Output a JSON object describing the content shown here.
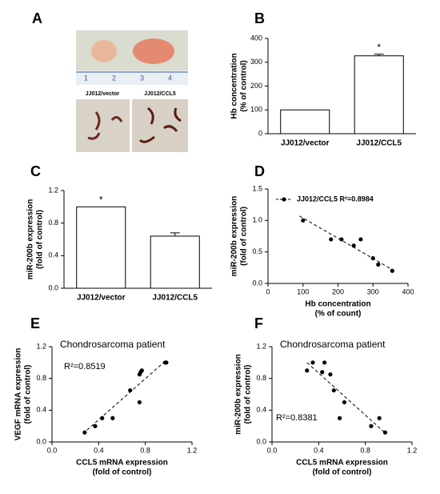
{
  "panel_a": {
    "letter": "A",
    "ruler": [
      "1",
      "2",
      "3",
      "4"
    ],
    "labels": [
      "JJ012/vector",
      "JJ012/CCL5"
    ]
  },
  "chart_data": [
    {
      "type": "bar",
      "letter": "B",
      "categories": [
        "JJ012/vector",
        "JJ012/CCL5"
      ],
      "values": [
        100,
        327
      ],
      "errors": [
        0,
        7
      ],
      "annotation": "*",
      "ylabel": [
        "Hb concentration",
        "(% of control)"
      ],
      "ylim": [
        0,
        400
      ],
      "yticks": [
        0,
        100,
        200,
        300,
        400
      ],
      "color": "#ffffff"
    },
    {
      "type": "bar",
      "letter": "C",
      "categories": [
        "JJ012/vector",
        "JJ012/CCL5"
      ],
      "values": [
        1.0,
        0.64
      ],
      "errors": [
        0,
        0.04
      ],
      "annotation": "*",
      "ylabel": [
        "miR-200b expression",
        "(fold of control)"
      ],
      "ylim": [
        0,
        1.2
      ],
      "yticks": [
        {
          "value": 0,
          "label": "0.0"
        },
        0.4,
        0.8,
        1.2
      ],
      "color": "#ffffff"
    },
    {
      "type": "scatter",
      "letter": "D",
      "legend": "JJ012/CCL5 R²=0.8984",
      "x": [
        100,
        180,
        210,
        245,
        265,
        300,
        315,
        355
      ],
      "y": [
        1.0,
        0.7,
        0.7,
        0.6,
        0.7,
        0.4,
        0.3,
        0.2
      ],
      "trendline": {
        "x": [
          90,
          355
        ],
        "y": [
          1.07,
          0.22
        ]
      },
      "xlabel": [
        "Hb concentration",
        "(% of count)"
      ],
      "ylabel": [
        "miR-200b expression",
        "(fold of control)"
      ],
      "xlim": [
        0,
        400
      ],
      "xticks": [
        0,
        100,
        200,
        300,
        400
      ],
      "ylim": [
        0,
        1.5
      ],
      "yticks": [
        {
          "value": 0,
          "label": "0.0"
        },
        0.5,
        {
          "value": 1,
          "label": "1.0"
        },
        1.5
      ],
      "color": "#000000"
    },
    {
      "type": "scatter",
      "letter": "E",
      "title": "Chondrosarcoma patient",
      "annotation": "R²=0.8519",
      "x": [
        0.28,
        0.37,
        0.43,
        0.52,
        0.67,
        0.75,
        0.75,
        0.76,
        0.77,
        0.97,
        0.98
      ],
      "y": [
        0.12,
        0.2,
        0.3,
        0.3,
        0.65,
        0.5,
        0.85,
        0.88,
        0.9,
        1.0,
        1.0
      ],
      "trendline": {
        "x": [
          0.3,
          0.98
        ],
        "y": [
          0.15,
          1.03
        ]
      },
      "xlabel": [
        "CCL5 mRNA expression",
        "(fold of control)"
      ],
      "ylabel": [
        "VEGF mRNA expression",
        "(fold of control)"
      ],
      "xlim": [
        0,
        1.2
      ],
      "xticks": [
        {
          "value": 0,
          "label": "0.0"
        },
        0.4,
        0.8,
        1.2
      ],
      "ylim": [
        0,
        1.2
      ],
      "yticks": [
        {
          "value": 0,
          "label": "0.0"
        },
        0.4,
        0.8,
        1.2
      ],
      "color": "#000000"
    },
    {
      "type": "scatter",
      "letter": "F",
      "title": "Chondrosarcoma patient",
      "annotation": "R²=0.8381",
      "x": [
        0.3,
        0.35,
        0.43,
        0.45,
        0.5,
        0.53,
        0.58,
        0.62,
        0.85,
        0.92,
        0.97
      ],
      "y": [
        0.9,
        1.0,
        0.88,
        1.0,
        0.85,
        0.65,
        0.3,
        0.5,
        0.2,
        0.3,
        0.12
      ],
      "trendline": {
        "x": [
          0.3,
          0.98
        ],
        "y": [
          1.0,
          0.1
        ]
      },
      "xlabel": [
        "CCL5 mRNA expression",
        "(fold of control)"
      ],
      "ylabel": [
        "miR-200b expression",
        "(fold of control)"
      ],
      "xlim": [
        0,
        1.2
      ],
      "xticks": [
        {
          "value": 0,
          "label": "0.0"
        },
        0.4,
        0.8,
        1.2
      ],
      "ylim": [
        0,
        1.2
      ],
      "yticks": [
        {
          "value": 0,
          "label": "0.0"
        },
        0.4,
        0.8,
        1.2
      ],
      "color": "#000000"
    }
  ]
}
